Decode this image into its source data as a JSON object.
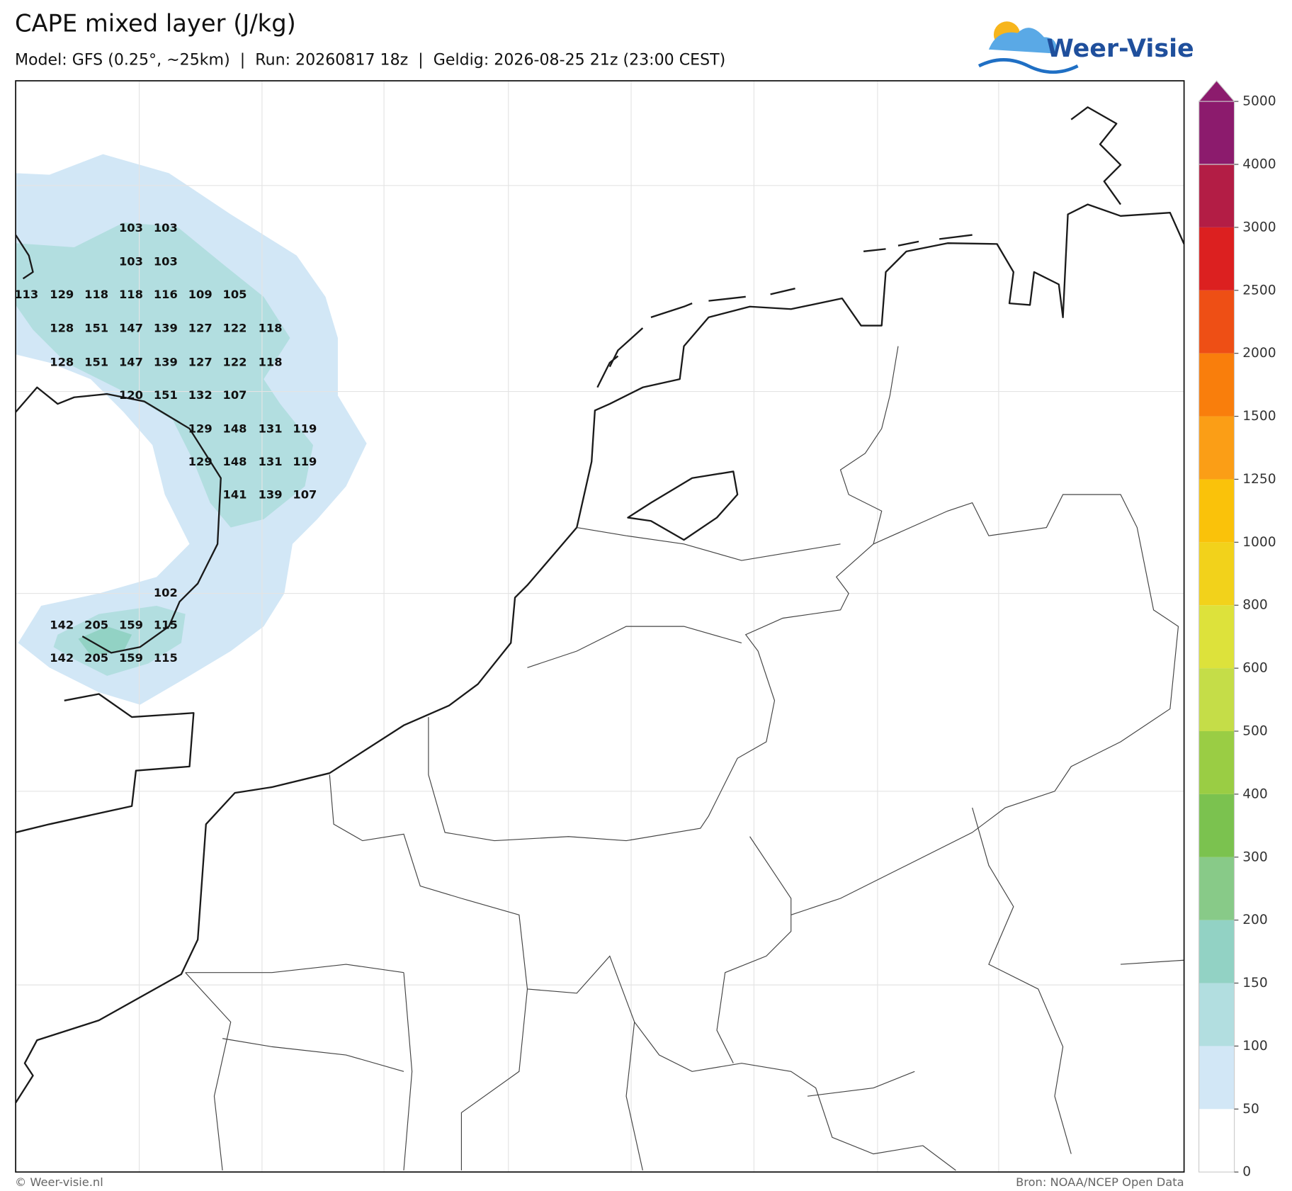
{
  "header": {
    "title": "CAPE mixed layer (J/kg)",
    "subtitle": "Model: GFS (0.25°, ~25km)  |  Run: 20260817 18z  |  Geldig: 2026-08-25 21z (23:00 CEST)",
    "logo": "Weer-Visie"
  },
  "colorbar": {
    "ticks": [
      0,
      50,
      100,
      150,
      200,
      300,
      400,
      500,
      600,
      800,
      1000,
      1250,
      1500,
      2000,
      2500,
      3000,
      4000,
      5000
    ],
    "colors": [
      "#ffffff",
      "#d2e7f6",
      "#b2dee0",
      "#92d2c4",
      "#88ca88",
      "#7bc24f",
      "#9acd44",
      "#c5dd48",
      "#dde23b",
      "#f2d21b",
      "#fac20a",
      "#fb9e16",
      "#f97e0c",
      "#ee4f15",
      "#dc2020",
      "#b31d45",
      "#8c1b6d"
    ]
  },
  "map_labels": [
    103,
    103,
    103,
    103,
    113,
    129,
    118,
    118,
    116,
    109,
    105,
    128,
    151,
    147,
    139,
    127,
    122,
    118,
    128,
    151,
    147,
    139,
    127,
    122,
    118,
    120,
    151,
    132,
    107,
    129,
    148,
    131,
    119,
    129,
    148,
    131,
    119,
    141,
    139,
    107,
    102,
    142,
    205,
    159,
    115,
    142,
    205,
    159,
    115
  ],
  "footer": {
    "left": "© Weer-visie.nl",
    "right": "Bron: NOAA/NCEP Open Data"
  }
}
